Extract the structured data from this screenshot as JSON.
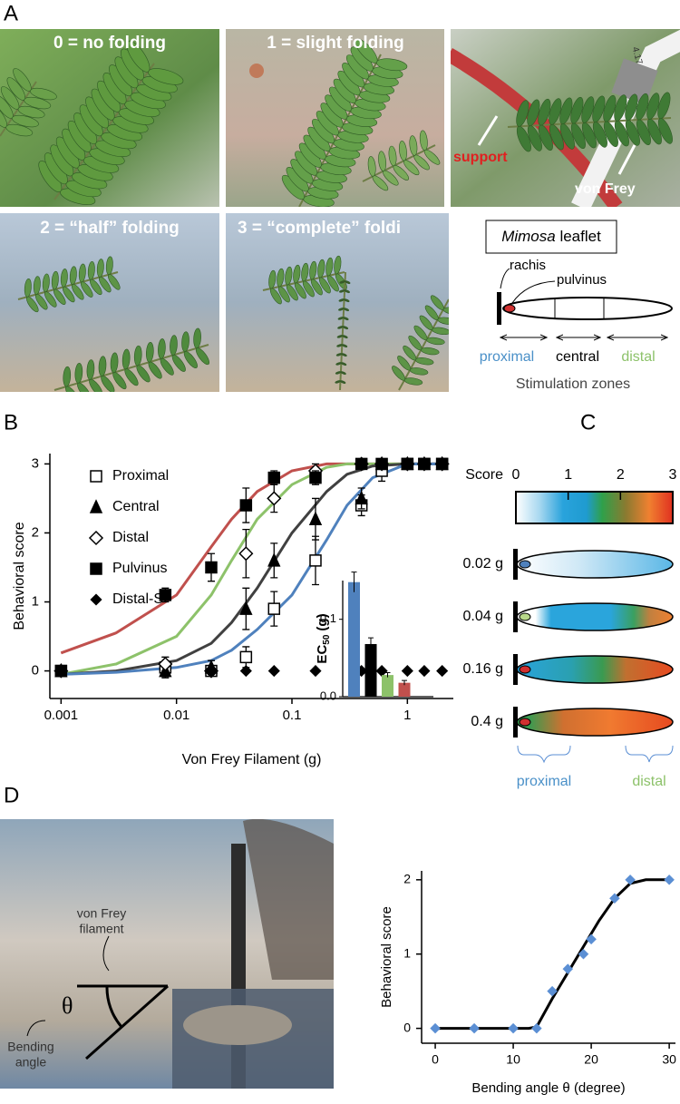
{
  "panel_labels": [
    "A",
    "B",
    "C",
    "D"
  ],
  "panel_a": {
    "photo_captions": [
      "0 = no folding",
      "1 = slight folding",
      "2 = “half” folding",
      "3 = “complete” foldi"
    ],
    "photo_labels": [
      "support",
      "von Frey"
    ],
    "filament_label": "4.17",
    "diagram": {
      "title_italic": "Mimosa",
      "title": "leaflet",
      "rachis": "rachis",
      "pulvinus": "pulvinus",
      "zones": [
        "proximal",
        "central",
        "distal"
      ],
      "caption": "Stimulation zones"
    }
  },
  "chart_data": [
    {
      "type": "scatter",
      "y_label": "Behavioral score",
      "x_label": "Von Frey Filament (g)",
      "log_x": true,
      "xlim": [
        0.0008,
        2.5
      ],
      "ylim": [
        -0.4,
        3.15
      ],
      "xticks": [
        0.001,
        0.01,
        0.1,
        1
      ],
      "yticks": [
        0,
        1,
        2,
        3
      ],
      "legend": "upper-left",
      "x": [
        0.001,
        0.008,
        0.02,
        0.04,
        0.07,
        0.16,
        0.4,
        0.6,
        1,
        1.4,
        2
      ],
      "series": [
        {
          "name": "Proximal",
          "marker": "open-square",
          "color": "#000000",
          "values": [
            0,
            0.05,
            0,
            0.2,
            0.9,
            1.6,
            2.4,
            2.9,
            3,
            3,
            3
          ],
          "errors": [
            0.05,
            0.15,
            0.05,
            0.15,
            0.25,
            0.35,
            0.15,
            0.15,
            0,
            0,
            0
          ]
        },
        {
          "name": "Central",
          "marker": "triangle",
          "color": "#000000",
          "values": [
            0,
            0,
            0.05,
            0.9,
            1.6,
            2.2,
            2.5,
            3,
            3,
            3,
            3
          ],
          "errors": [
            0.05,
            0.05,
            0.1,
            0.3,
            0.25,
            0.3,
            0.15,
            0,
            0,
            0,
            0
          ]
        },
        {
          "name": "Distal",
          "marker": "open-diamond",
          "color": "#000000",
          "values": [
            0,
            0.1,
            0,
            1.7,
            2.5,
            2.9,
            3,
            3,
            3,
            3,
            3
          ],
          "errors": [
            0.05,
            0.1,
            0.05,
            0.35,
            0.2,
            0.1,
            0,
            0,
            0,
            0,
            0
          ]
        },
        {
          "name": "Pulvinus",
          "marker": "square",
          "color": "#000000",
          "values": [
            0,
            1.1,
            1.5,
            2.4,
            2.8,
            2.8,
            3,
            3,
            3,
            3,
            3
          ],
          "errors": [
            0.05,
            0.1,
            0.2,
            0.25,
            0.1,
            0.1,
            0,
            0,
            0,
            0,
            0
          ]
        },
        {
          "name": "Distal-S",
          "marker": "diamond",
          "color": "#000000",
          "values": [
            0,
            null,
            0,
            0,
            0,
            0,
            0,
            0,
            0,
            0,
            0
          ],
          "errors": [
            0,
            null,
            0,
            0,
            0,
            0,
            0,
            0,
            0,
            0,
            0
          ]
        }
      ],
      "fits": [
        {
          "color": "#c0504d",
          "x": [
            0.001,
            0.003,
            0.01,
            0.02,
            0.03,
            0.05,
            0.1,
            0.2,
            0.3,
            0.5,
            1,
            2
          ],
          "values": [
            0.26,
            0.55,
            1.1,
            1.8,
            2.2,
            2.6,
            2.9,
            3,
            3,
            3,
            3,
            3
          ]
        },
        {
          "color": "#8dc26a",
          "x": [
            0.001,
            0.003,
            0.01,
            0.02,
            0.03,
            0.05,
            0.1,
            0.2,
            0.3,
            0.5,
            1,
            2
          ],
          "values": [
            -0.05,
            0.1,
            0.5,
            1.1,
            1.6,
            2.2,
            2.7,
            2.95,
            3,
            3,
            3,
            3
          ]
        },
        {
          "color": "#404040",
          "x": [
            0.001,
            0.003,
            0.01,
            0.02,
            0.03,
            0.05,
            0.1,
            0.2,
            0.3,
            0.5,
            1,
            2
          ],
          "values": [
            -0.05,
            0,
            0.15,
            0.4,
            0.7,
            1.2,
            2,
            2.6,
            2.85,
            2.97,
            3,
            3
          ]
        },
        {
          "color": "#4f81bd",
          "x": [
            0.001,
            0.003,
            0.01,
            0.02,
            0.03,
            0.05,
            0.1,
            0.2,
            0.3,
            0.5,
            1,
            2
          ],
          "values": [
            -0.05,
            -0.02,
            0.05,
            0.15,
            0.3,
            0.6,
            1.1,
            1.9,
            2.4,
            2.8,
            3,
            3
          ]
        }
      ]
    },
    {
      "type": "bar",
      "y_label": {
        "main": "EC",
        "sub": "50",
        "unit": "(g)"
      },
      "categories": [
        null,
        null,
        null,
        null
      ],
      "values": [
        0.148,
        0.068,
        0.028,
        0.018
      ],
      "errors": [
        0.013,
        0.008,
        0.003,
        0.003
      ],
      "colors": [
        "#4f81bd",
        "#000000",
        "#8dc26a",
        "#c0504d"
      ],
      "ylim": [
        0,
        0.15
      ],
      "yticks": [
        {
          "value": 0,
          "label": "0.0"
        },
        0.1
      ]
    },
    {
      "type": "scatter",
      "y_label": "Behavioral score",
      "x_label": "Bending angle θ (degree)",
      "xlim": [
        -1.75,
        30.8
      ],
      "ylim": [
        -0.2,
        2.12
      ],
      "xticks": [
        0,
        10,
        20,
        30
      ],
      "yticks": [
        0,
        1,
        2
      ],
      "x": [
        0,
        5,
        10,
        13,
        15,
        17,
        19,
        20,
        23,
        25,
        30
      ],
      "series": [
        {
          "marker": "diamond",
          "color": "#5b8fd4",
          "values": [
            0,
            0,
            0,
            0,
            0.5,
            0.8,
            1,
            1.2,
            1.75,
            2,
            2
          ]
        }
      ],
      "fits": [
        {
          "color": "#000000",
          "x": [
            0,
            10,
            12,
            13,
            15,
            17,
            19,
            21,
            23,
            25,
            27,
            30
          ],
          "values": [
            0,
            0,
            0,
            0.02,
            0.4,
            0.75,
            1.1,
            1.45,
            1.75,
            1.95,
            2,
            2
          ]
        }
      ]
    }
  ],
  "panel_c": {
    "title": "Score",
    "colorbar_ticks": [
      0,
      1,
      2,
      3
    ],
    "leaflet_labels": [
      "0.02 g",
      "0.04 g",
      "0.16 g",
      "0.4 g"
    ],
    "zones": [
      "proximal",
      "distal"
    ]
  },
  "panel_d_photo": {
    "filament_label": [
      "von Frey",
      "filament"
    ],
    "angle_symbol": "θ",
    "angle_label": [
      "Bending",
      "angle"
    ]
  }
}
